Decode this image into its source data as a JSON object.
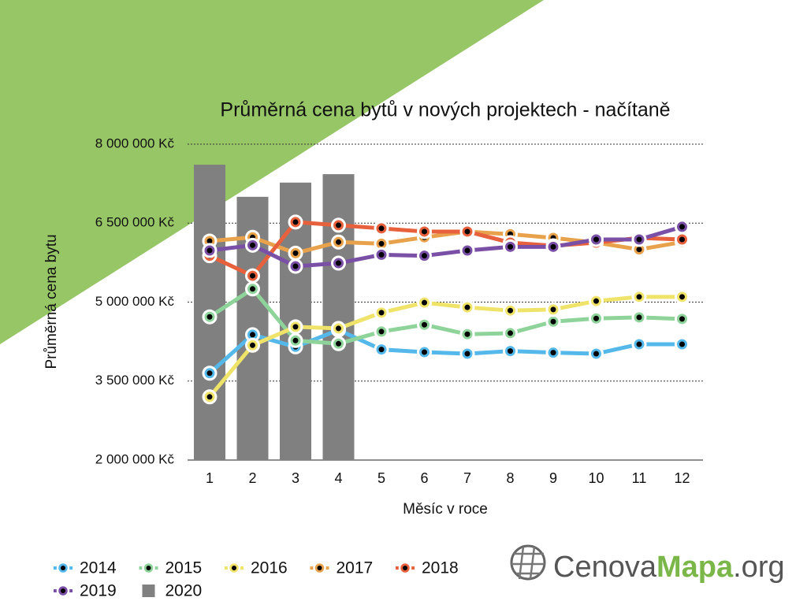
{
  "chart_data": {
    "type": "line",
    "title": "Průměrná cena bytů v nových projektech - načítaně",
    "y_label": "Průměrná cena bytu",
    "x_label": "Měsíc v roce",
    "categories": [
      "1",
      "2",
      "3",
      "4",
      "5",
      "6",
      "7",
      "8",
      "9",
      "10",
      "11",
      "12"
    ],
    "ylim": [
      2000000,
      8000000
    ],
    "yticks": [
      {
        "value": 2000000,
        "label": "2 000 000 Kč"
      },
      {
        "value": 3500000,
        "label": "3 500 000 Kč"
      },
      {
        "value": 5000000,
        "label": "5 000 000 Kč"
      },
      {
        "value": 6500000,
        "label": "6 500 000 Kč"
      },
      {
        "value": 8000000,
        "label": "8 000 000 Kč"
      }
    ],
    "grid": true,
    "legend": "bottom",
    "series": [
      {
        "name": "2020",
        "type": "bar",
        "color": "#7f807f",
        "values": [
          7610000,
          7000000,
          7270000,
          7430000,
          null,
          null,
          null,
          null,
          null,
          null,
          null,
          null
        ]
      },
      {
        "name": "2014",
        "color": "#55b8ea",
        "values": [
          3650000,
          4380000,
          4150000,
          4470000,
          4100000,
          4050000,
          4020000,
          4070000,
          4040000,
          4020000,
          4200000,
          4200000
        ]
      },
      {
        "name": "2015",
        "color": "#8ed49a",
        "values": [
          4720000,
          5250000,
          4270000,
          4210000,
          4440000,
          4570000,
          4390000,
          4410000,
          4630000,
          4690000,
          4710000,
          4680000
        ]
      },
      {
        "name": "2016",
        "color": "#f0e36a",
        "values": [
          3200000,
          4180000,
          4530000,
          4500000,
          4800000,
          4990000,
          4900000,
          4840000,
          4860000,
          5020000,
          5100000,
          5100000
        ]
      },
      {
        "name": "2017",
        "color": "#e9a24c",
        "values": [
          6160000,
          6230000,
          5930000,
          6140000,
          6110000,
          6230000,
          6340000,
          6290000,
          6220000,
          6130000,
          6000000,
          6140000
        ]
      },
      {
        "name": "2018",
        "color": "#e8613d",
        "values": [
          5880000,
          5500000,
          6520000,
          6460000,
          6400000,
          6340000,
          6340000,
          6130000,
          6070000,
          6130000,
          6220000,
          6190000
        ]
      },
      {
        "name": "2019",
        "color": "#7a4fa6",
        "values": [
          5980000,
          6080000,
          5680000,
          5740000,
          5900000,
          5880000,
          5980000,
          6050000,
          6050000,
          6190000,
          6190000,
          6430000
        ]
      }
    ]
  },
  "logo": {
    "part1": "Cenova",
    "part2": "Mapa",
    "part3": ".org"
  }
}
